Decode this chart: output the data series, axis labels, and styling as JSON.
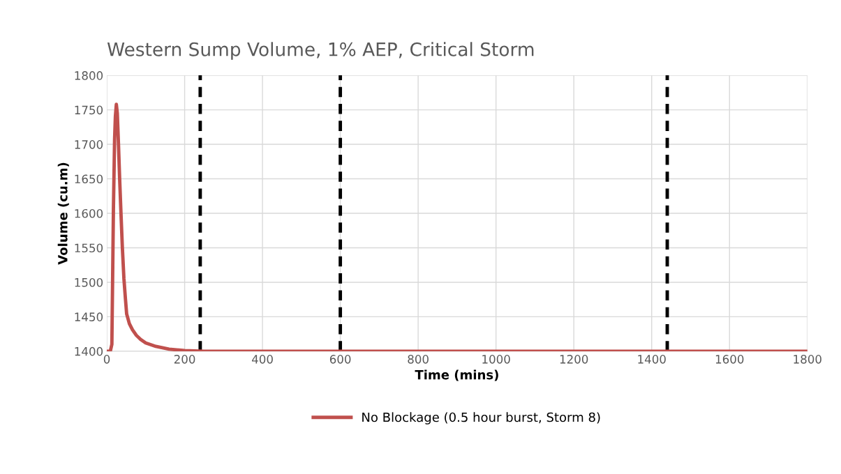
{
  "chart_data": {
    "type": "line",
    "title": "Western Sump Volume, 1% AEP, Critical Storm",
    "xlabel": "Time (mins)",
    "ylabel": "Volume (cu.m)",
    "series": [
      {
        "name": "No Blockage (0.5 hour burst, Storm 8)",
        "color": "#c0504d",
        "x": [
          0,
          9,
          13,
          17,
          20,
          22,
          24.5,
          27,
          30,
          33,
          36,
          40,
          44,
          48,
          51,
          58,
          66,
          76,
          87,
          100,
          126,
          160,
          200,
          250,
          300,
          600,
          1000,
          1440,
          1800
        ],
        "values": [
          1400,
          1400,
          1410,
          1606,
          1707,
          1740,
          1758,
          1745,
          1700,
          1650,
          1606,
          1550,
          1505,
          1475,
          1454,
          1440,
          1431,
          1423,
          1417,
          1412,
          1407,
          1403,
          1401,
          1400,
          1400,
          1400,
          1400,
          1400,
          1400
        ]
      }
    ],
    "xlim": [
      0,
      1800
    ],
    "xticks": [
      0,
      200,
      400,
      600,
      800,
      1000,
      1200,
      1400,
      1600,
      1800
    ],
    "ylim": [
      1400,
      1800
    ],
    "yticks": [
      1400,
      1450,
      1500,
      1550,
      1600,
      1650,
      1700,
      1750,
      1800
    ],
    "ref_lines": [
      {
        "axis": "x",
        "value": 240,
        "color": "#000000",
        "line_style": "dashed"
      },
      {
        "axis": "x",
        "value": 600,
        "color": "#000000",
        "line_style": "dashed"
      },
      {
        "axis": "x",
        "value": 1440,
        "color": "#000000",
        "line_style": "dashed"
      }
    ],
    "grid": true,
    "legend": "bottom",
    "marker": "none",
    "line_style": "solid"
  }
}
